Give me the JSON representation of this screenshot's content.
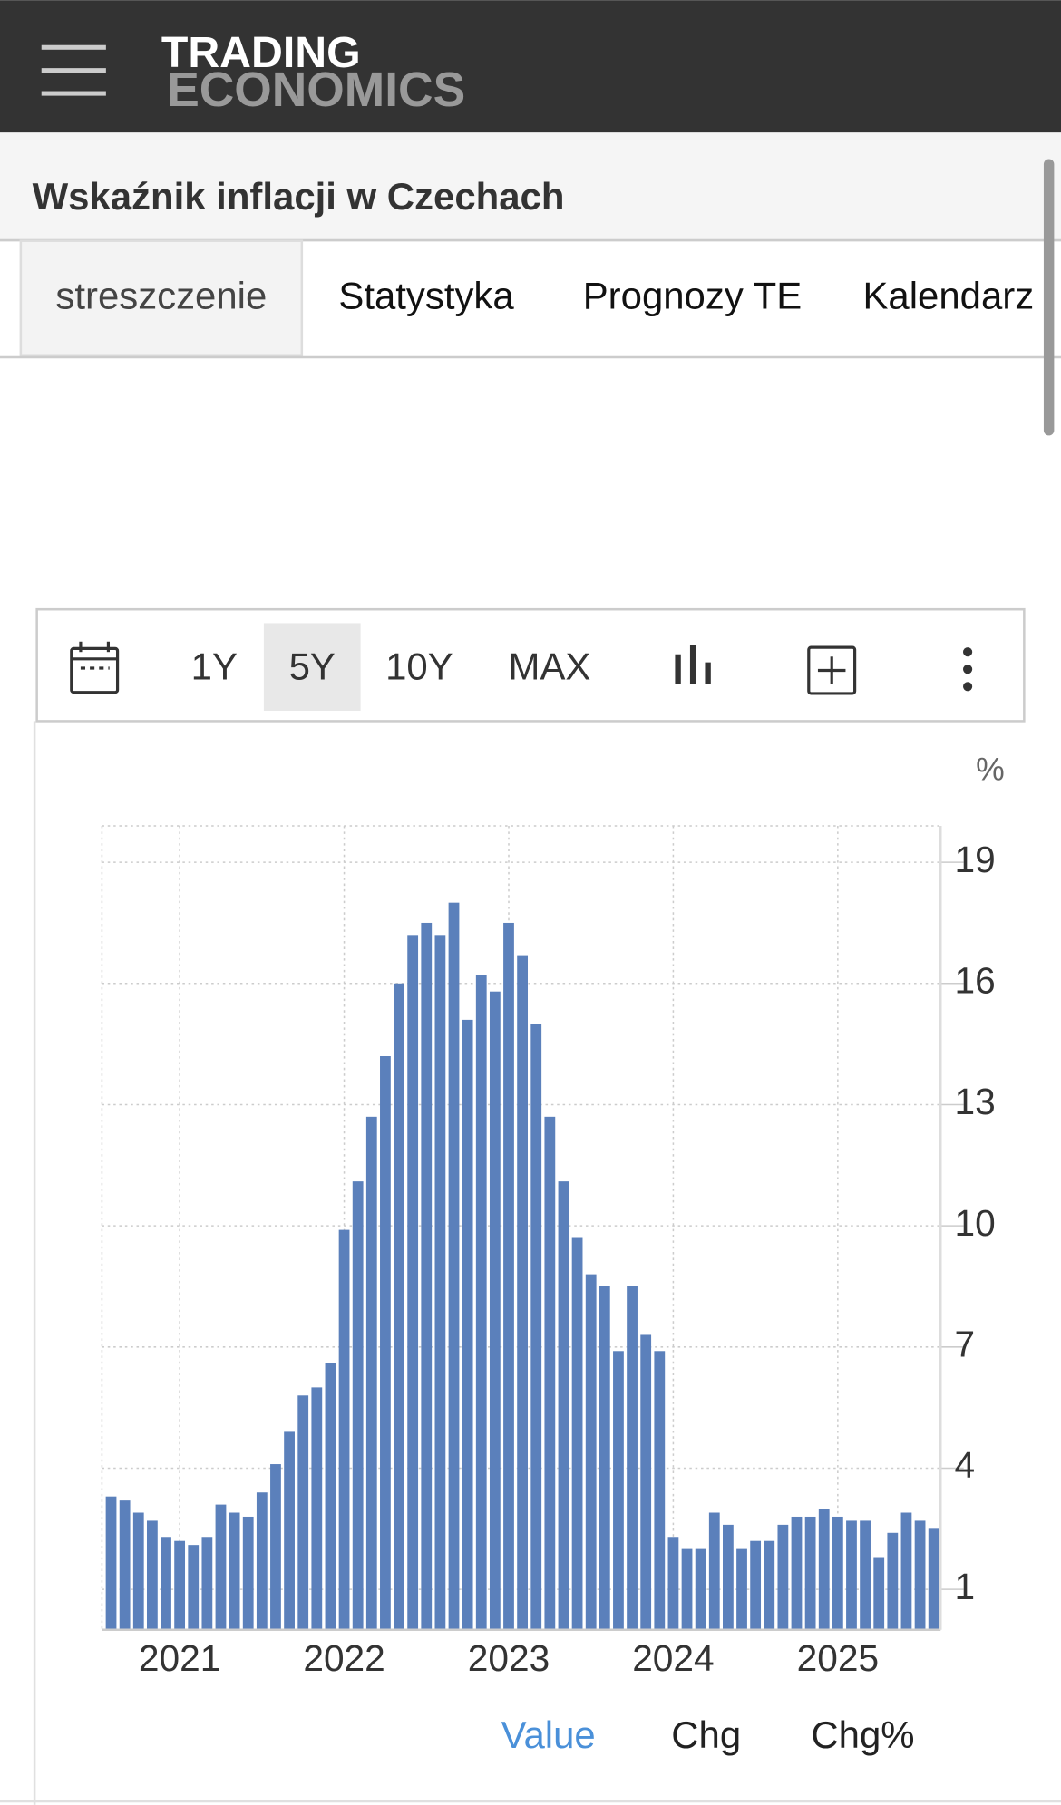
{
  "header": {
    "logo_top": "TRADING",
    "logo_bottom": "ECONOMICS"
  },
  "title": "Wskaźnik inflacji w Czechach",
  "tabs": [
    "streszczenie",
    "Statystyka",
    "Prognozy TE",
    "Kalendarz"
  ],
  "toolbar": {
    "ranges": [
      "1Y",
      "5Y",
      "10Y",
      "MAX"
    ],
    "active": "5Y"
  },
  "chart_data": {
    "type": "bar",
    "unit": "%",
    "color": "#5b80bb",
    "grid": true,
    "categories": [
      null,
      null,
      null,
      null,
      null,
      "2021",
      null,
      null,
      null,
      null,
      null,
      null,
      null,
      null,
      null,
      null,
      null,
      "2022",
      null,
      null,
      null,
      null,
      null,
      null,
      null,
      null,
      null,
      null,
      null,
      "2023",
      null,
      null,
      null,
      null,
      null,
      null,
      null,
      null,
      null,
      null,
      null,
      "2024",
      null,
      null,
      null,
      null,
      null,
      null,
      null,
      null,
      null,
      null,
      null,
      "2025",
      null,
      null,
      null,
      null,
      null,
      null,
      null
    ],
    "values": [
      3.3,
      3.2,
      2.9,
      2.7,
      2.3,
      2.2,
      2.1,
      2.3,
      3.1,
      2.9,
      2.8,
      3.4,
      4.1,
      4.9,
      5.8,
      6.0,
      6.6,
      9.9,
      11.1,
      12.7,
      14.2,
      16.0,
      17.2,
      17.5,
      17.2,
      18.0,
      15.1,
      16.2,
      15.8,
      17.5,
      16.7,
      15.0,
      12.7,
      11.1,
      9.7,
      8.8,
      8.5,
      6.9,
      8.5,
      7.3,
      6.9,
      2.3,
      2.0,
      2.0,
      2.9,
      2.6,
      2.0,
      2.2,
      2.2,
      2.6,
      2.8,
      2.8,
      3.0,
      2.8,
      2.7,
      2.7,
      1.8,
      2.4,
      2.9,
      2.7,
      2.5
    ],
    "ylim": [
      0,
      19.9
    ],
    "yticks": [
      1,
      4,
      7,
      10,
      13,
      16,
      19
    ]
  },
  "legend": {
    "items": [
      "Value",
      "Chg",
      "Chg%"
    ],
    "active": "Value"
  }
}
